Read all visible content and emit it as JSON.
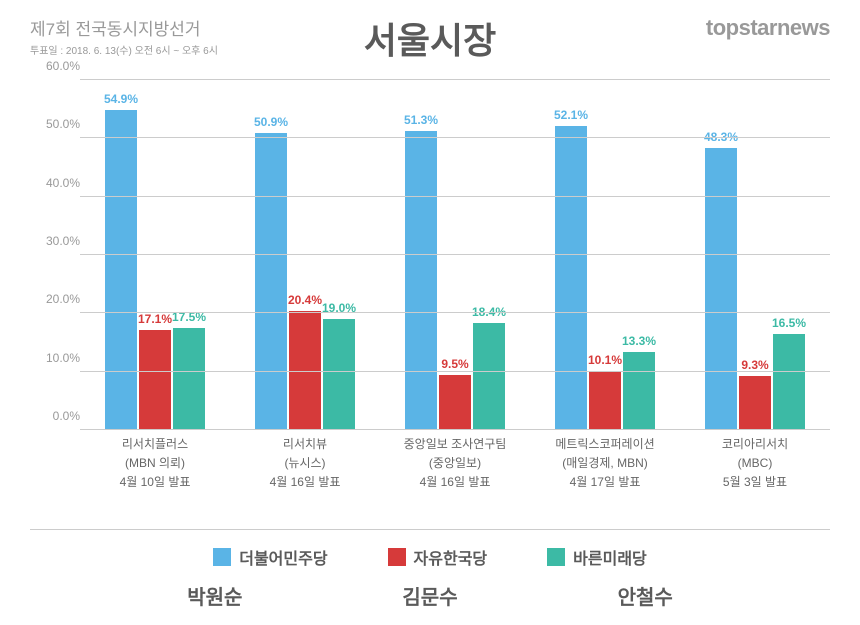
{
  "header": {
    "subtitle": "제7회 전국동시지방선거",
    "subtext": "투표일 : 2018. 6. 13(수) 오전 6시 ~ 오후 6시",
    "title": "서울시장",
    "brand": "topstarnews"
  },
  "chart": {
    "type": "bar",
    "ylim": [
      0,
      60
    ],
    "ytick_step": 10,
    "ytick_suffix": ".0%",
    "grid_color": "#cccccc",
    "background_color": "#ffffff",
    "label_suffix": "%",
    "series": [
      {
        "name": "더불어민주당",
        "color": "#5ab4e6",
        "label_color": "#5ab4e6"
      },
      {
        "name": "자유한국당",
        "color": "#d63a3a",
        "label_color": "#d63a3a"
      },
      {
        "name": "바른미래당",
        "color": "#3cbaa5",
        "label_color": "#3cbaa5"
      }
    ],
    "groups": [
      {
        "lines": [
          "리서치플러스",
          "(MBN 의뢰)",
          "4월 10일 발표"
        ],
        "values": [
          54.9,
          17.1,
          17.5
        ]
      },
      {
        "lines": [
          "리서치뷰",
          "(뉴시스)",
          "4월 16일 발표"
        ],
        "values": [
          50.9,
          20.4,
          19.0
        ]
      },
      {
        "lines": [
          "중앙일보 조사연구팀",
          "(중앙일보)",
          "4월 16일 발표"
        ],
        "values": [
          51.3,
          9.5,
          18.4
        ]
      },
      {
        "lines": [
          "메트릭스코퍼레이션",
          "(매일경제, MBN)",
          "4월 17일 발표"
        ],
        "values": [
          52.1,
          10.1,
          13.3
        ]
      },
      {
        "lines": [
          "코리아리서치",
          "(MBC)",
          "5월 3일 발표"
        ],
        "values": [
          48.3,
          9.3,
          16.5
        ]
      }
    ],
    "candidates": [
      "박원순",
      "김문수",
      "안철수"
    ]
  }
}
